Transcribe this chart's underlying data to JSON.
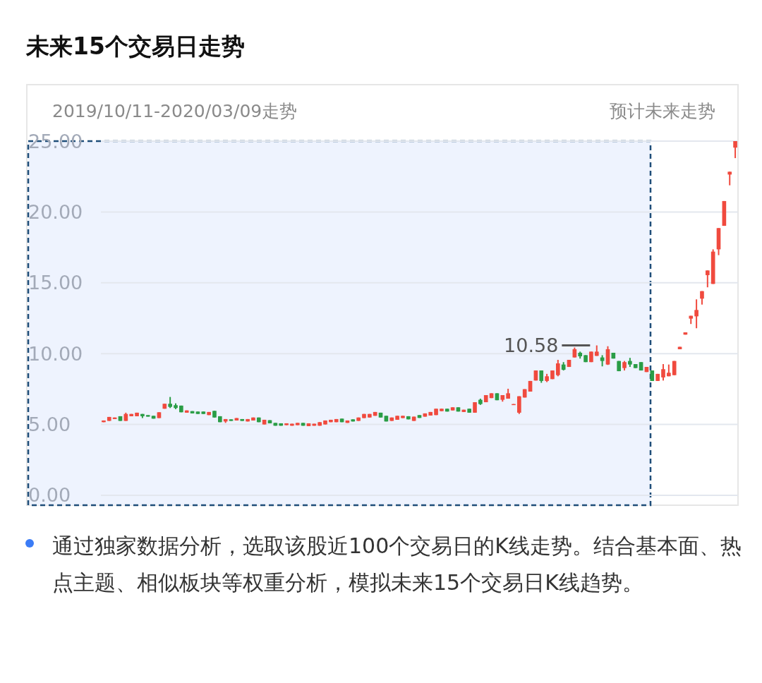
{
  "chart_data": {
    "type": "candlestick",
    "title": "未来15个交易日走势",
    "annotations": [
      "2019/10/11-2020/03/09走势",
      "预计未来走势",
      "通过独家数据分析，选取该股近100个交易日的K线走势。结合基本面、热点主题、相似板块等权重分析，模拟未来15个交易日K线趋势。",
      "10.58"
    ],
    "categories": [
      null,
      null,
      null,
      null,
      null,
      null,
      null,
      null,
      null,
      null,
      null,
      null,
      null,
      null,
      null,
      null,
      null,
      null,
      null,
      null,
      null,
      null,
      null,
      null,
      null,
      null,
      null,
      null,
      null,
      null,
      null,
      null,
      null,
      null,
      null,
      null,
      null,
      null,
      null,
      null,
      null,
      null,
      null,
      null,
      null,
      null,
      null,
      null,
      null,
      null,
      null,
      null,
      null,
      null,
      null,
      null,
      null,
      null,
      null,
      null,
      null,
      null,
      null,
      null,
      null,
      null,
      null,
      null,
      null,
      null,
      null,
      null,
      null,
      null,
      null,
      null,
      null,
      null,
      null,
      null,
      null,
      null,
      null,
      null,
      null,
      null,
      null,
      null,
      null,
      null,
      null,
      null,
      null,
      null,
      null,
      null,
      null,
      null,
      null,
      null,
      null,
      null,
      null,
      null,
      null,
      null,
      null,
      null,
      null,
      null,
      null,
      null,
      null,
      null,
      null
    ],
    "ohlc": [
      [
        5.16,
        5.28,
        5.16,
        5.28
      ],
      [
        5.25,
        5.53,
        5.25,
        5.53
      ],
      [
        5.38,
        5.49,
        5.38,
        5.49
      ],
      [
        5.58,
        5.58,
        5.25,
        5.25
      ],
      [
        5.25,
        5.83,
        5.25,
        5.74
      ],
      [
        5.58,
        5.74,
        5.58,
        5.74
      ],
      [
        5.58,
        5.83,
        5.58,
        5.83
      ],
      [
        5.74,
        5.74,
        5.45,
        5.58
      ],
      [
        5.66,
        5.66,
        5.55,
        5.55
      ],
      [
        5.61,
        5.61,
        5.41,
        5.41
      ],
      [
        5.45,
        5.86,
        5.45,
        5.86
      ],
      [
        6.11,
        6.46,
        6.11,
        6.46
      ],
      [
        6.46,
        6.94,
        6.16,
        6.24
      ],
      [
        6.36,
        6.49,
        6.08,
        6.16
      ],
      [
        6.33,
        6.33,
        5.86,
        5.86
      ],
      [
        5.83,
        5.99,
        5.83,
        5.99
      ],
      [
        5.94,
        5.94,
        5.78,
        5.78
      ],
      [
        5.91,
        5.91,
        5.74,
        5.74
      ],
      [
        5.91,
        5.91,
        5.74,
        5.74
      ],
      [
        5.66,
        5.88,
        5.66,
        5.88
      ],
      [
        5.96,
        5.96,
        5.49,
        5.49
      ],
      [
        5.58,
        5.58,
        5.16,
        5.16
      ],
      [
        5.21,
        5.38,
        5.11,
        5.38
      ],
      [
        5.36,
        5.36,
        5.25,
        5.25
      ],
      [
        5.28,
        5.45,
        5.28,
        5.45
      ],
      [
        5.38,
        5.38,
        5.25,
        5.25
      ],
      [
        5.21,
        5.38,
        5.21,
        5.38
      ],
      [
        5.28,
        5.49,
        5.28,
        5.49
      ],
      [
        5.49,
        5.49,
        5.16,
        5.16
      ],
      [
        5.0,
        5.33,
        5.0,
        5.33
      ],
      [
        5.3,
        5.3,
        5.08,
        5.08
      ],
      [
        5.11,
        5.11,
        4.91,
        4.91
      ],
      [
        5.08,
        5.08,
        4.91,
        4.91
      ],
      [
        4.95,
        5.08,
        4.95,
        5.08
      ],
      [
        4.91,
        5.05,
        4.91,
        5.05
      ],
      [
        4.95,
        5.11,
        4.95,
        5.11
      ],
      [
        5.11,
        5.11,
        4.91,
        4.91
      ],
      [
        4.88,
        5.08,
        4.88,
        5.08
      ],
      [
        4.91,
        5.05,
        4.91,
        5.05
      ],
      [
        4.91,
        5.16,
        4.91,
        5.16
      ],
      [
        5.0,
        5.28,
        5.0,
        5.28
      ],
      [
        5.16,
        5.33,
        5.16,
        5.33
      ],
      [
        5.16,
        5.38,
        5.16,
        5.38
      ],
      [
        5.41,
        5.41,
        5.16,
        5.16
      ],
      [
        5.11,
        5.28,
        5.11,
        5.28
      ],
      [
        5.36,
        5.36,
        5.21,
        5.21
      ],
      [
        5.25,
        5.49,
        5.25,
        5.49
      ],
      [
        5.45,
        5.74,
        5.45,
        5.74
      ],
      [
        5.49,
        5.74,
        5.49,
        5.74
      ],
      [
        5.61,
        5.88,
        5.61,
        5.88
      ],
      [
        5.83,
        5.83,
        5.49,
        5.49
      ],
      [
        5.61,
        5.61,
        5.21,
        5.21
      ],
      [
        5.25,
        5.49,
        5.25,
        5.49
      ],
      [
        5.33,
        5.61,
        5.33,
        5.61
      ],
      [
        5.45,
        5.61,
        5.45,
        5.61
      ],
      [
        5.58,
        5.58,
        5.36,
        5.36
      ],
      [
        5.25,
        5.55,
        5.25,
        5.55
      ],
      [
        5.66,
        5.66,
        5.46,
        5.46
      ],
      [
        5.55,
        5.78,
        5.55,
        5.78
      ],
      [
        5.63,
        5.88,
        5.63,
        5.88
      ],
      [
        5.66,
        6.11,
        5.66,
        6.11
      ],
      [
        5.94,
        6.11,
        5.94,
        6.11
      ],
      [
        6.11,
        6.11,
        5.91,
        5.91
      ],
      [
        5.99,
        6.21,
        5.99,
        6.21
      ],
      [
        6.21,
        6.21,
        5.91,
        5.91
      ],
      [
        5.88,
        6.04,
        5.88,
        6.04
      ],
      [
        6.11,
        6.11,
        5.83,
        5.83
      ],
      [
        5.83,
        6.57,
        5.83,
        6.57
      ],
      [
        6.74,
        6.82,
        6.38,
        6.44
      ],
      [
        6.57,
        7.07,
        6.57,
        7.07
      ],
      [
        6.86,
        7.2,
        6.86,
        7.2
      ],
      [
        7.2,
        7.2,
        6.71,
        6.71
      ],
      [
        6.74,
        7.07,
        6.61,
        7.07
      ],
      [
        6.82,
        7.52,
        6.82,
        7.2
      ],
      [
        6.38,
        6.44,
        6.38,
        6.44
      ],
      [
        5.83,
        6.99,
        5.74,
        6.99
      ],
      [
        6.9,
        7.49,
        6.9,
        7.49
      ],
      [
        7.32,
        8.07,
        7.32,
        8.07
      ],
      [
        8.1,
        8.81,
        8.1,
        8.81
      ],
      [
        8.81,
        8.81,
        7.94,
        8.07
      ],
      [
        8.07,
        8.57,
        7.99,
        8.4
      ],
      [
        8.2,
        8.81,
        8.2,
        8.81
      ],
      [
        8.48,
        9.56,
        8.4,
        9.31
      ],
      [
        9.23,
        9.4,
        8.81,
        8.86
      ],
      [
        9.06,
        9.56,
        9.06,
        9.56
      ],
      [
        9.73,
        10.43,
        9.73,
        10.31
      ],
      [
        10.06,
        10.14,
        9.65,
        9.81
      ],
      [
        9.89,
        9.89,
        9.4,
        9.4
      ],
      [
        9.4,
        10.14,
        9.4,
        10.14
      ],
      [
        9.84,
        10.58,
        9.84,
        10.14
      ],
      [
        9.73,
        9.89,
        9.1,
        9.48
      ],
      [
        9.23,
        10.52,
        9.2,
        10.31
      ],
      [
        10.06,
        10.06,
        9.65,
        9.65
      ],
      [
        9.48,
        9.48,
        8.76,
        8.76
      ],
      [
        8.98,
        9.48,
        8.81,
        9.4
      ],
      [
        9.48,
        9.7,
        9.06,
        9.23
      ],
      [
        9.26,
        9.26,
        8.98,
        8.98
      ],
      [
        9.4,
        9.4,
        8.81,
        8.81
      ],
      [
        8.7,
        9.06,
        8.7,
        9.06
      ],
      [
        8.81,
        8.81,
        8.07,
        8.07
      ],
      [
        8.07,
        8.57,
        8.07,
        8.57
      ],
      [
        8.32,
        9.26,
        8.1,
        8.9
      ],
      [
        8.4,
        9.23,
        8.4,
        8.65
      ],
      [
        8.48,
        9.48,
        8.48,
        9.48
      ],
      [
        10.31,
        10.48,
        10.31,
        10.48
      ],
      [
        11.34,
        11.5,
        11.34,
        11.5
      ],
      [
        12.47,
        12.67,
        12.09,
        12.67
      ],
      [
        12.63,
        13.83,
        11.79,
        13.08
      ],
      [
        13.88,
        14.41,
        13.46,
        14.41
      ],
      [
        15.54,
        15.87,
        14.68,
        15.87
      ],
      [
        14.92,
        17.36,
        14.92,
        17.2
      ],
      [
        17.36,
        18.86,
        16.95,
        18.86
      ],
      [
        19.02,
        20.77,
        19.02,
        20.77
      ],
      [
        22.64,
        22.84,
        21.88,
        22.84
      ],
      [
        24.54,
        25.0,
        23.8,
        25.0
      ]
    ],
    "colors": [
      "#f04a3e",
      "#f04a3e",
      "#f04a3e",
      "#2a9d46",
      "#f04a3e",
      "#f04a3e",
      "#f04a3e",
      "#2a9d46",
      "#2a9d46",
      "#2a9d46",
      "#f04a3e",
      "#f04a3e",
      "#2a9d46",
      "#2a9d46",
      "#2a9d46",
      "#f04a3e",
      "#2a9d46",
      "#2a9d46",
      "#2a9d46",
      "#f04a3e",
      "#2a9d46",
      "#2a9d46",
      "#f04a3e",
      "#2a9d46",
      "#f04a3e",
      "#2a9d46",
      "#f04a3e",
      "#f04a3e",
      "#2a9d46",
      "#f04a3e",
      "#2a9d46",
      "#2a9d46",
      "#2a9d46",
      "#f04a3e",
      "#f04a3e",
      "#f04a3e",
      "#2a9d46",
      "#f04a3e",
      "#f04a3e",
      "#f04a3e",
      "#f04a3e",
      "#f04a3e",
      "#f04a3e",
      "#2a9d46",
      "#f04a3e",
      "#2a9d46",
      "#f04a3e",
      "#f04a3e",
      "#f04a3e",
      "#f04a3e",
      "#2a9d46",
      "#2a9d46",
      "#f04a3e",
      "#f04a3e",
      "#f04a3e",
      "#2a9d46",
      "#f04a3e",
      "#2a9d46",
      "#f04a3e",
      "#f04a3e",
      "#f04a3e",
      "#f04a3e",
      "#2a9d46",
      "#f04a3e",
      "#2a9d46",
      "#f04a3e",
      "#2a9d46",
      "#f04a3e",
      "#2a9d46",
      "#f04a3e",
      "#f04a3e",
      "#2a9d46",
      "#f04a3e",
      "#f04a3e",
      "#f04a3e",
      "#f04a3e",
      "#f04a3e",
      "#f04a3e",
      "#f04a3e",
      "#2a9d46",
      "#f04a3e",
      "#f04a3e",
      "#f04a3e",
      "#2a9d46",
      "#f04a3e",
      "#f04a3e",
      "#2a9d46",
      "#2a9d46",
      "#f04a3e",
      "#f04a3e",
      "#2a9d46",
      "#f04a3e",
      "#2a9d46",
      "#2a9d46",
      "#f04a3e",
      "#2a9d46",
      "#2a9d46",
      "#2a9d46",
      "#f04a3e",
      "#2a9d46",
      "#f04a3e",
      "#f04a3e",
      "#f04a3e",
      "#f04a3e",
      "#f04a3e",
      "#f04a3e",
      "#f04a3e",
      "#f04a3e",
      "#f04a3e",
      "#f04a3e",
      "#f04a3e",
      "#f04a3e",
      "#f04a3e",
      "#f04a3e",
      "#f04a3e"
    ],
    "ylim": [
      -0.7,
      25
    ],
    "yticks": [
      {
        "value": 0,
        "label": "0.00"
      },
      {
        "value": 5,
        "label": "5.00"
      },
      {
        "value": 10,
        "label": "10.00"
      },
      {
        "value": 15,
        "label": "15.00"
      },
      {
        "value": 20,
        "label": "20.00"
      },
      {
        "value": 25,
        "label": "25.00"
      }
    ],
    "tick_labels": "y",
    "grid": "y"
  }
}
